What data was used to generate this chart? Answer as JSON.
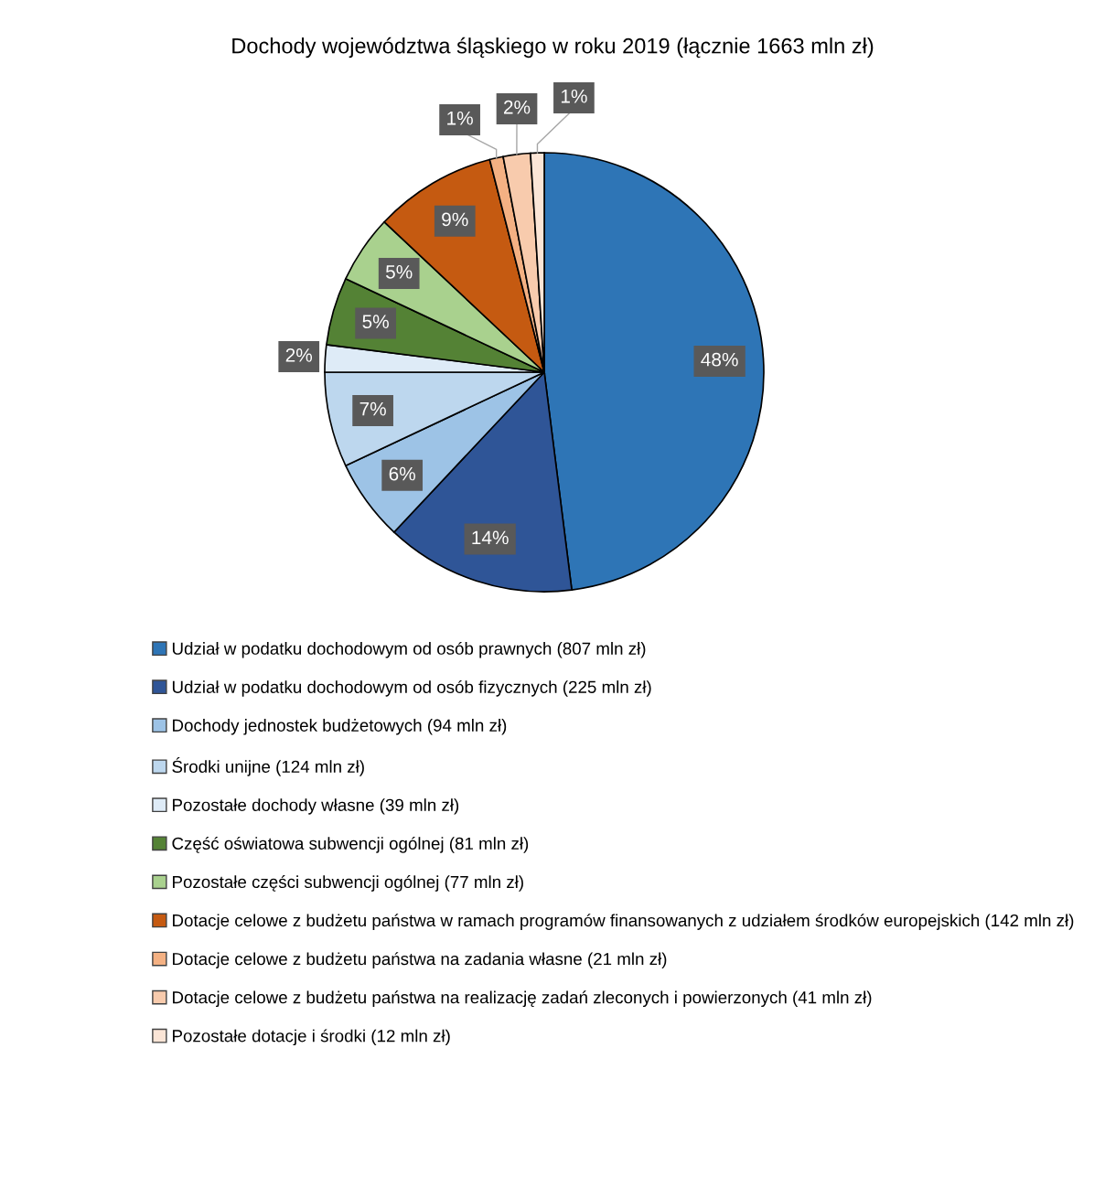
{
  "chart_data": {
    "type": "pie",
    "title": "Dochody województwa śląskiego w roku 2019 (łącznie 1663 mln zł)",
    "categories": [
      "Udział w podatku dochodowym od osób prawnych (807 mln zł)",
      "Udział w podatku dochodowym od osób fizycznych (225 mln zł)",
      "Dochody jednostek budżetowych (94 mln zł)",
      "Środki unijne (124 mln zł)",
      "Pozostałe dochody własne (39 mln zł)",
      "Część oświatowa subwencji ogólnej (81 mln zł)",
      "Pozostałe części subwencji ogólnej (77 mln zł)",
      "Dotacje celowe z budżetu państwa w ramach programów finansowanych z udziałem środków europejskich (142 mln zł)",
      "Dotacje celowe z budżetu państwa na zadania własne (21 mln zł)",
      "Dotacje celowe z budżetu państwa na realizację zadań zleconych i powierzonych (41 mln zł)",
      "Pozostałe dotacje i środki (12 mln zł)"
    ],
    "values": [
      48,
      14,
      6,
      7,
      2,
      5,
      5,
      9,
      1,
      2,
      1
    ],
    "colors": [
      "#2e75b6",
      "#2f5597",
      "#9dc3e6",
      "#bdd7ee",
      "#deebf7",
      "#548235",
      "#a9d18e",
      "#c55a11",
      "#f4b183",
      "#f8cbad",
      "#fbe5d6"
    ],
    "value_labels": [
      "48%",
      "14%",
      "6%",
      "7%",
      "2%",
      "5%",
      "5%",
      "9%",
      "1%",
      "2%",
      "1%"
    ],
    "legend": "bottom"
  }
}
